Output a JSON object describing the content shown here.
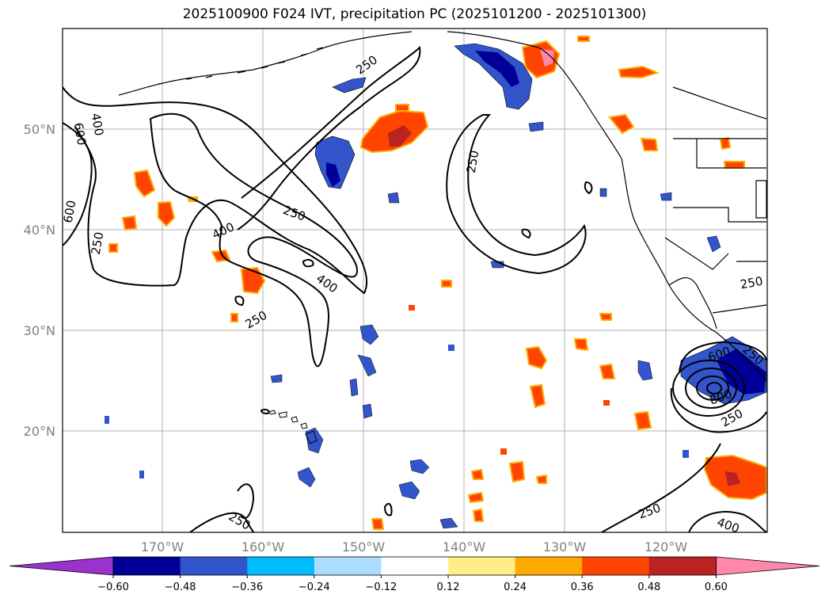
{
  "title": "2025100900 F024 IVT, precipitation PC (2025101200 - 2025101300)",
  "lat_labels": [
    "50°N",
    "40°N",
    "30°N",
    "20°N"
  ],
  "lon_labels": [
    "170°W",
    "160°W",
    "150°W",
    "140°W",
    "130°W",
    "120°W"
  ],
  "contour_labels": [
    "400",
    "600",
    "600",
    "250",
    "250",
    "400",
    "400",
    "250",
    "250",
    "250",
    "250",
    "250",
    "250",
    "600",
    "800",
    "250",
    "250",
    "400"
  ],
  "colorbar": {
    "ticks": [
      "−0.60",
      "−0.48",
      "−0.36",
      "−0.24",
      "−0.12",
      "0.12",
      "0.24",
      "0.36",
      "0.48",
      "0.60"
    ],
    "colors": [
      "#9933cc",
      "#000099",
      "#3355cc",
      "#00bbff",
      "#aaddff",
      "#ffffff",
      "#ffee88",
      "#ffaa00",
      "#ff4400",
      "#bb2222",
      "#ff88aa"
    ]
  },
  "colors": {
    "grid": "#b0b0b0",
    "coast": "#000000",
    "contour": "#000000"
  }
}
